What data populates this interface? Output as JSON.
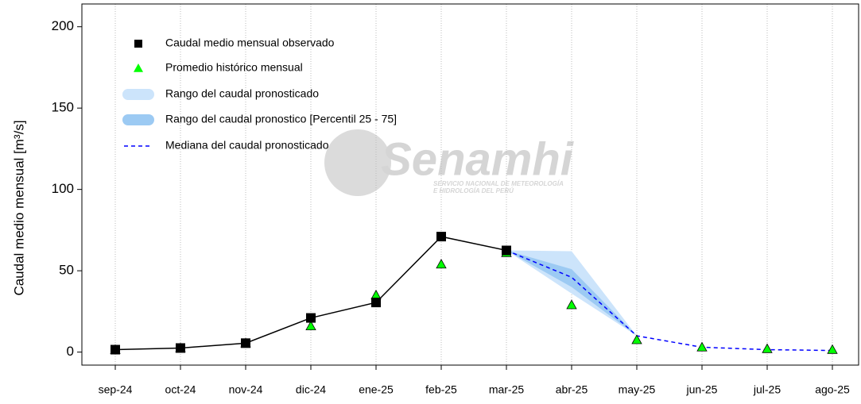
{
  "chart_data": {
    "type": "line",
    "y_label": "Caudal medio mensual  [m³/s]",
    "watermark": {
      "title": "Senamhi",
      "subtitle_1": "SERVICIO NACIONAL DE METEOROLOGÍA",
      "subtitle_2": "E HIDROLOGÍA DEL PERÚ"
    },
    "categories": [
      "sep-24",
      "oct-24",
      "nov-24",
      "dic-24",
      "ene-25",
      "feb-25",
      "mar-25",
      "abr-25",
      "may-25",
      "jun-25",
      "jul-25",
      "ago-25"
    ],
    "ylim": [
      -8,
      214
    ],
    "yticks": [
      0,
      50,
      100,
      150,
      200
    ],
    "grid": true,
    "bands": [
      {
        "name": "Rango del caudal pronosticado",
        "color": "#cce4fb",
        "low": [
          null,
          null,
          null,
          null,
          null,
          null,
          62.5,
          36,
          10,
          null,
          null,
          null
        ],
        "high": [
          null,
          null,
          null,
          null,
          null,
          null,
          62.5,
          62,
          10,
          null,
          null,
          null
        ]
      },
      {
        "name": "Rango del caudal pronostico [Percentil 25 - 75]",
        "color": "#9ccaf3",
        "low": [
          null,
          null,
          null,
          null,
          null,
          null,
          62.5,
          40,
          10,
          null,
          null,
          null
        ],
        "high": [
          null,
          null,
          null,
          null,
          null,
          null,
          62.5,
          51,
          10,
          null,
          null,
          null
        ]
      }
    ],
    "series": [
      {
        "name": "Caudal medio mensual observado",
        "color": "#000000",
        "marker": "square",
        "values": [
          1.5,
          2.5,
          5.5,
          21,
          30.5,
          71,
          62.5,
          null,
          null,
          null,
          null,
          null
        ]
      },
      {
        "name": "Promedio histórico mensual",
        "color": "#00ff00",
        "marker": "triangle",
        "values": [
          1.5,
          2.5,
          5.5,
          16,
          35,
          54,
          61,
          29,
          7.5,
          3,
          2,
          1.5
        ]
      },
      {
        "name": "Mediana del caudal pronosticado",
        "color": "#0000ff",
        "marker": "dashed",
        "values": [
          null,
          null,
          null,
          null,
          null,
          null,
          62.5,
          46,
          10,
          3,
          1.5,
          1
        ]
      }
    ]
  }
}
